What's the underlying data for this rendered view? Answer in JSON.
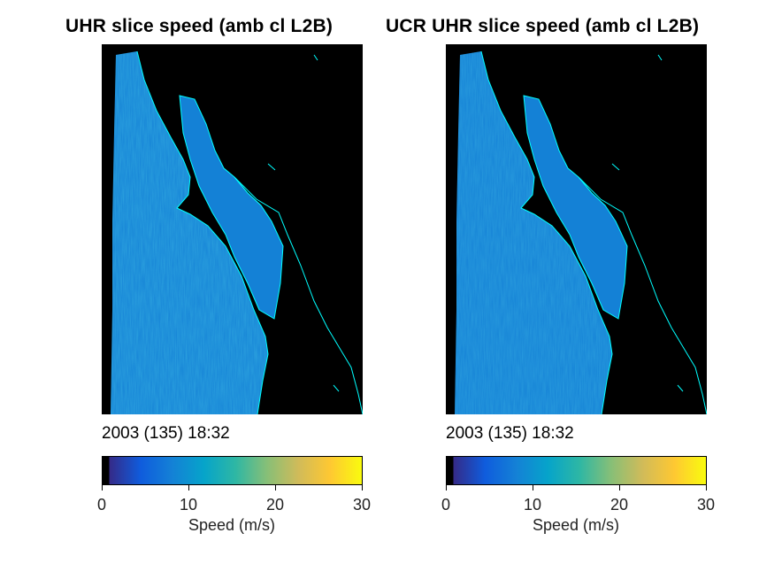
{
  "chart_data": [
    {
      "type": "heatmap",
      "title": "UHR slice speed (amb cl L2B)",
      "timestamp": "2003 (135) 18:32",
      "colorbar": {
        "label": "Speed (m/s)",
        "range": [
          0,
          30
        ],
        "ticks": [
          "0",
          "10",
          "20",
          "30"
        ]
      },
      "typical_speed": 8,
      "colors": {
        "land": "#000000",
        "coastline": "#00ffff"
      }
    },
    {
      "type": "heatmap",
      "title": "UCR UHR slice speed (amb cl L2B)",
      "timestamp": "2003 (135) 18:32",
      "colorbar": {
        "label": "Speed (m/s)",
        "range": [
          0,
          30
        ],
        "ticks": [
          "0",
          "10",
          "20",
          "30"
        ]
      },
      "typical_speed": 7,
      "colors": {
        "land": "#000000",
        "coastline": "#00ffff"
      }
    }
  ],
  "colormap": [
    "#352a87",
    "#0f5cdd",
    "#1481d6",
    "#06a4ca",
    "#2eb7a4",
    "#87bf77",
    "#d1bb59",
    "#fec832",
    "#f9fb0e"
  ]
}
